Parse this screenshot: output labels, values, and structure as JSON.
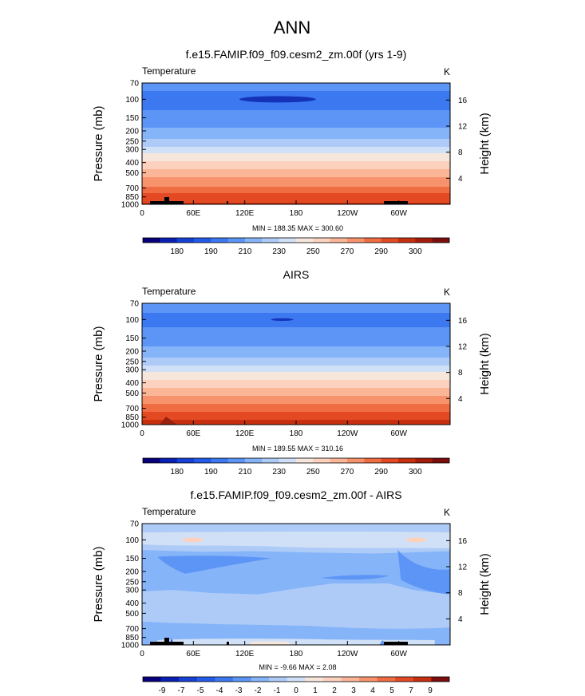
{
  "page_title": "ANN",
  "chart_data": [
    {
      "type": "heatmap",
      "title": "f.e15.FAMIP.f09_f09.cesm2_zm.00f (yrs 1-9)",
      "left_label": "Temperature",
      "right_label": "K",
      "ylabel": "Pressure (mb)",
      "y2label": "Height (km)",
      "xlabel": "",
      "x_ticks": [
        "0",
        "60E",
        "120E",
        "180",
        "120W",
        "60W"
      ],
      "y_ticks": [
        "70",
        "100",
        "150",
        "200",
        "250",
        "300",
        "400",
        "500",
        "700",
        "850",
        "1000"
      ],
      "y2_ticks": [
        "16",
        "12",
        "8",
        "4"
      ],
      "stats": "MIN = 188.35  MAX = 300.60",
      "colorbar": {
        "labels": [
          "180",
          "190",
          "210",
          "230",
          "250",
          "270",
          "290",
          "300"
        ],
        "colors": [
          "#08007a",
          "#0a1fb4",
          "#1640d6",
          "#245ae8",
          "#3c78f0",
          "#5c95f5",
          "#86b4f8",
          "#aecbf8",
          "#d0e0f6",
          "#f7e6dc",
          "#fcd2be",
          "#fbb597",
          "#f7936c",
          "#f06c43",
          "#e34a24",
          "#c7300f",
          "#a41c0a",
          "#7c0d0d"
        ]
      },
      "profile_levels_mb": [
        70,
        100,
        150,
        200,
        250,
        300,
        400,
        500,
        700,
        850,
        1000
      ],
      "profile_values": [
        213,
        205,
        212,
        218,
        226,
        236,
        249,
        259,
        273,
        282,
        288
      ],
      "min_value": 188.35,
      "max_value": 300.6,
      "colorbar_range": [
        170,
        310
      ]
    },
    {
      "type": "heatmap",
      "title": "AIRS",
      "left_label": "Temperature",
      "right_label": "K",
      "ylabel": "Pressure (mb)",
      "y2label": "Height (km)",
      "xlabel": "",
      "x_ticks": [
        "0",
        "60E",
        "120E",
        "180",
        "120W",
        "60W"
      ],
      "y_ticks": [
        "70",
        "100",
        "150",
        "200",
        "250",
        "300",
        "400",
        "500",
        "700",
        "850",
        "1000"
      ],
      "y2_ticks": [
        "16",
        "12",
        "8",
        "4"
      ],
      "stats": "MIN = 189.55  MAX = 310.16",
      "colorbar": {
        "labels": [
          "180",
          "190",
          "210",
          "230",
          "250",
          "270",
          "290",
          "300"
        ],
        "colors": [
          "#08007a",
          "#0a1fb4",
          "#1640d6",
          "#245ae8",
          "#3c78f0",
          "#5c95f5",
          "#86b4f8",
          "#aecbf8",
          "#d0e0f6",
          "#f7e6dc",
          "#fcd2be",
          "#fbb597",
          "#f7936c",
          "#f06c43",
          "#e34a24",
          "#c7300f",
          "#a41c0a",
          "#7c0d0d"
        ]
      },
      "profile_levels_mb": [
        70,
        100,
        150,
        200,
        250,
        300,
        400,
        500,
        700,
        850,
        1000
      ],
      "profile_values": [
        213,
        206,
        213,
        219,
        228,
        238,
        251,
        261,
        275,
        284,
        290
      ],
      "min_value": 189.55,
      "max_value": 310.16,
      "colorbar_range": [
        170,
        310
      ]
    },
    {
      "type": "heatmap",
      "title": "f.e15.FAMIP.f09_f09.cesm2_zm.00f - AIRS",
      "left_label": "Temperature",
      "right_label": "K",
      "ylabel": "Pressure (mb)",
      "y2label": "Height (km)",
      "xlabel": "",
      "x_ticks": [
        "0",
        "60E",
        "120E",
        "180",
        "120W",
        "60W"
      ],
      "y_ticks": [
        "70",
        "100",
        "150",
        "200",
        "250",
        "300",
        "400",
        "500",
        "700",
        "850",
        "1000"
      ],
      "y2_ticks": [
        "16",
        "12",
        "8",
        "4"
      ],
      "stats": "MIN = -9.66  MAX = 2.08",
      "colorbar": {
        "labels": [
          "-9",
          "-7",
          "-5",
          "-4",
          "-3",
          "-2",
          "-1",
          "0",
          "1",
          "2",
          "3",
          "4",
          "5",
          "7",
          "9"
        ],
        "colors": [
          "#08007a",
          "#0a1fb4",
          "#1640d6",
          "#245ae8",
          "#3c78f0",
          "#5c95f5",
          "#86b4f8",
          "#aecbf8",
          "#d0e0f6",
          "#f7e6dc",
          "#fcd2be",
          "#fbb597",
          "#f7936c",
          "#f06c43",
          "#e34a24",
          "#c7300f",
          "#7c0d0d"
        ]
      },
      "min_value": -9.66,
      "max_value": 2.08
    }
  ]
}
